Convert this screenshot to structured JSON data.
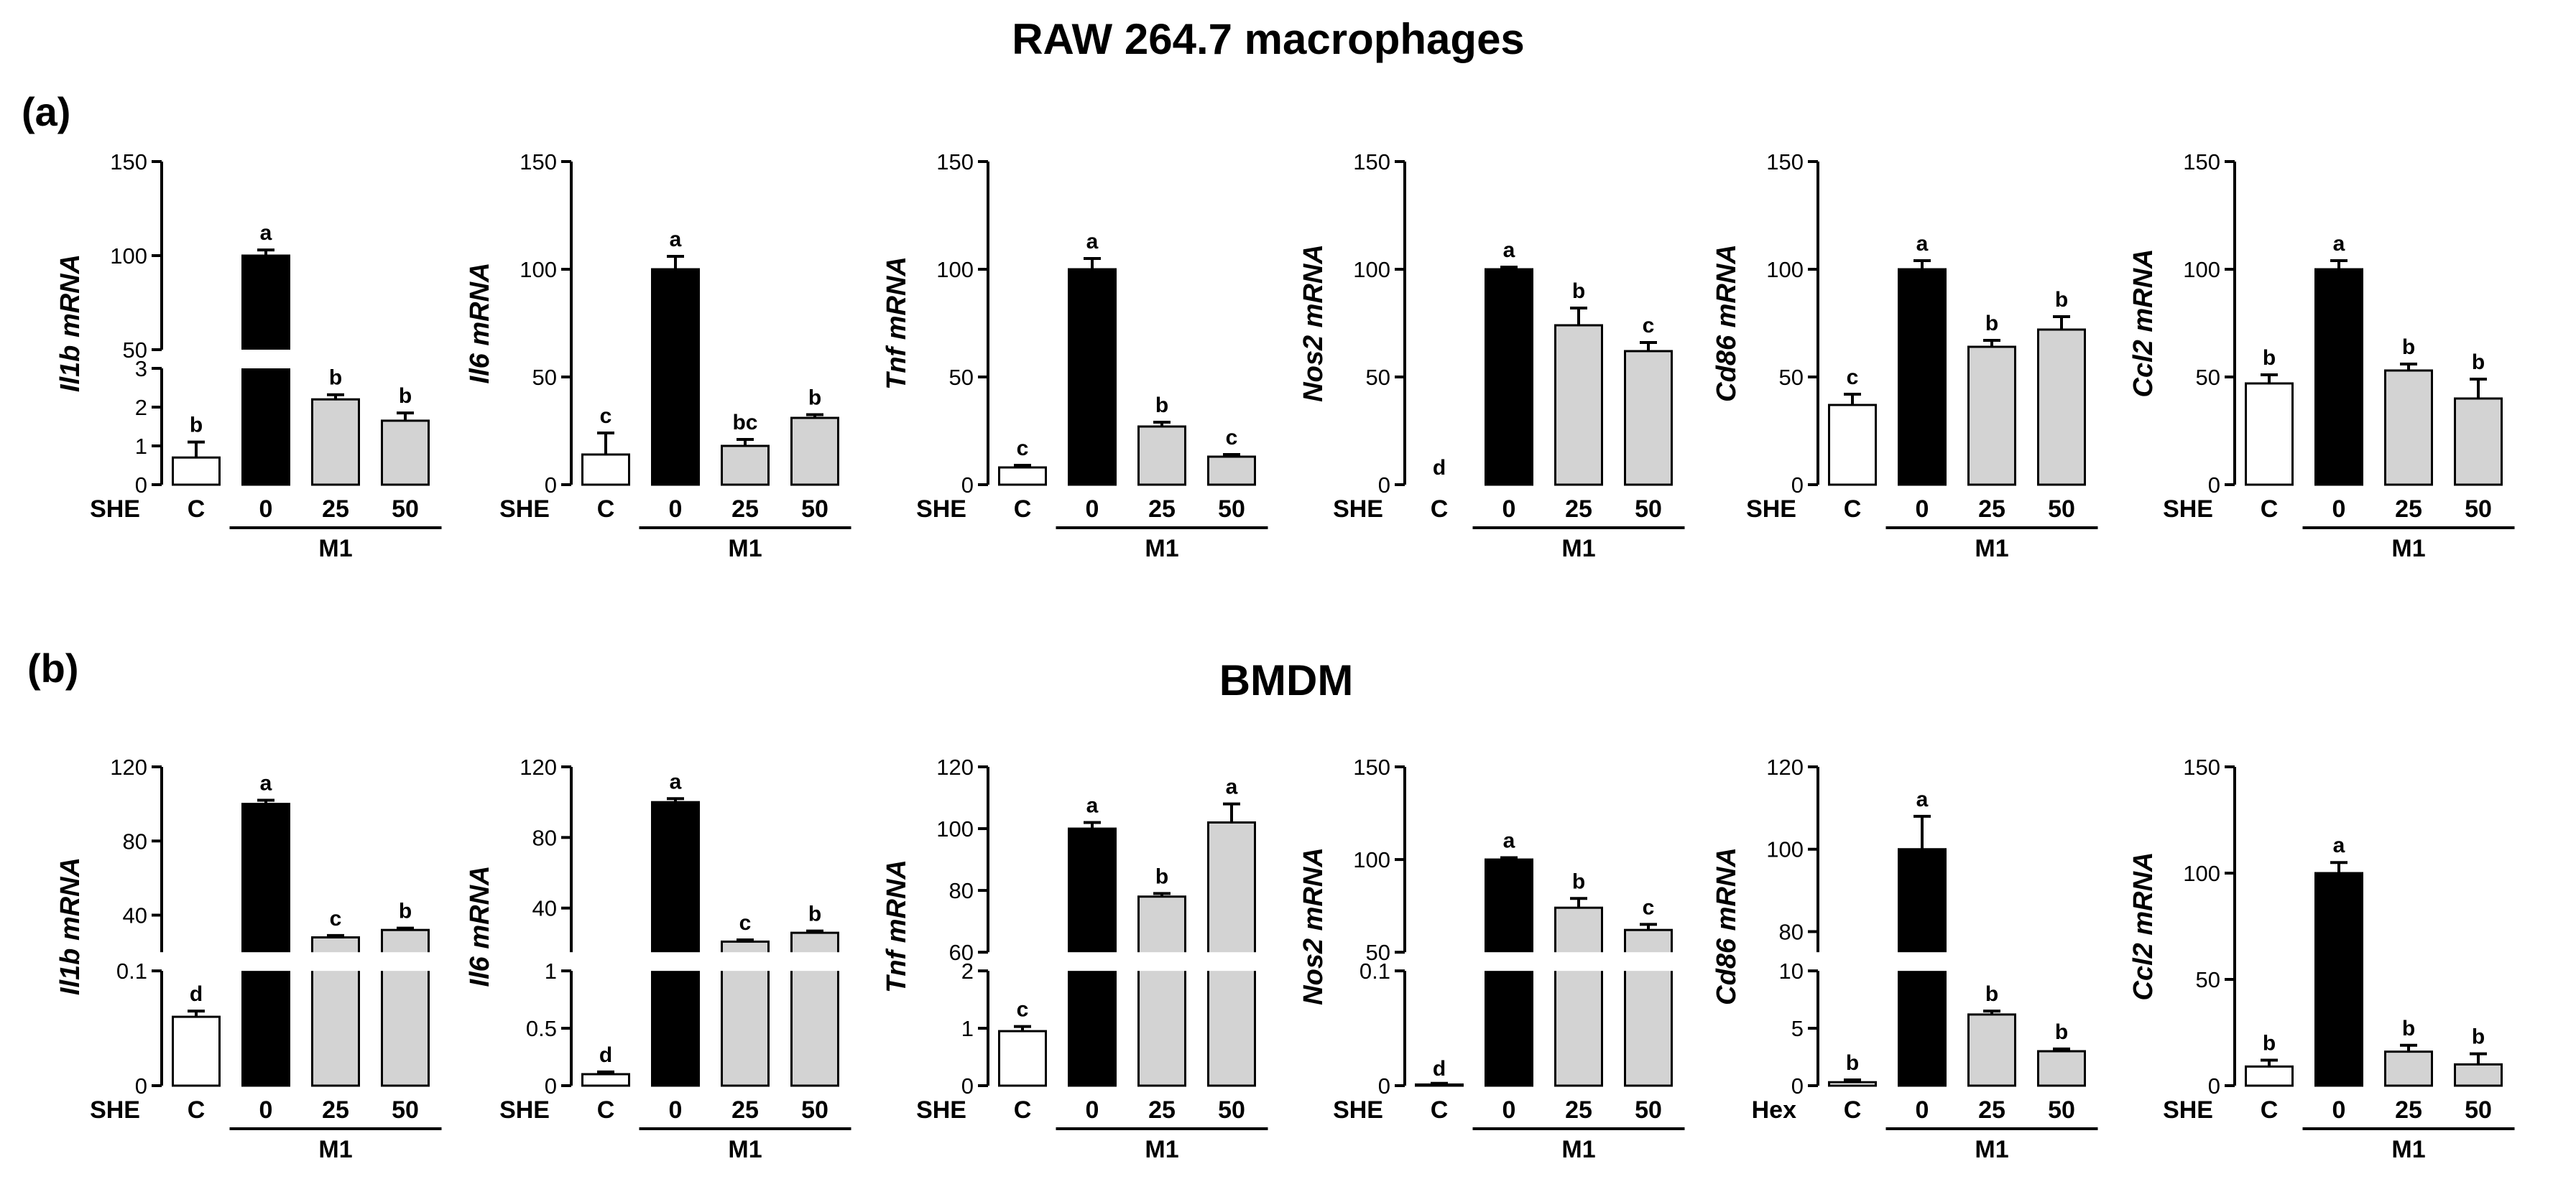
{
  "titles": {
    "raw": "RAW 264.7 macrophages",
    "bmdm": "BMDM",
    "panel_a": "(a)",
    "panel_b": "(b)"
  },
  "colors": {
    "control": "#ffffff",
    "m1": "#000000",
    "she": "#d3d3d3",
    "axis": "#000000"
  },
  "chart_data": [
    {
      "panel": "a",
      "type": "bar",
      "gene": "Il1b",
      "ylabel": "Il1b mRNA",
      "treatment_label": "SHE",
      "group_label": "M1",
      "categories": [
        "C",
        "0",
        "25",
        "50"
      ],
      "values": [
        0.7,
        100,
        2.2,
        1.65
      ],
      "errors": [
        0.4,
        3,
        0.12,
        0.2
      ],
      "letters": [
        "b",
        "a",
        "b",
        "b"
      ],
      "broken_axis": {
        "lower": [
          0,
          3
        ],
        "upper": [
          50,
          150
        ],
        "lower_ticks": [
          0,
          1,
          2,
          3
        ],
        "upper_ticks": [
          50,
          100,
          150
        ]
      }
    },
    {
      "panel": "a",
      "type": "bar",
      "gene": "Il6",
      "ylabel": "Il6 mRNA",
      "treatment_label": "SHE",
      "group_label": "M1",
      "categories": [
        "C",
        "0",
        "25",
        "50"
      ],
      "values": [
        14,
        100,
        18,
        31
      ],
      "errors": [
        10,
        6,
        3,
        1.5
      ],
      "letters": [
        "c",
        "a",
        "bc",
        "b"
      ],
      "ylim": [
        0,
        150
      ],
      "yticks": [
        0,
        50,
        100,
        150
      ]
    },
    {
      "panel": "a",
      "type": "bar",
      "gene": "Tnf",
      "ylabel": "Tnf mRNA",
      "treatment_label": "SHE",
      "group_label": "M1",
      "categories": [
        "C",
        "0",
        "25",
        "50"
      ],
      "values": [
        8,
        100,
        27,
        13
      ],
      "errors": [
        1,
        5,
        2,
        1
      ],
      "letters": [
        "c",
        "a",
        "b",
        "c"
      ],
      "ylim": [
        0,
        150
      ],
      "yticks": [
        0,
        50,
        100,
        150
      ]
    },
    {
      "panel": "a",
      "type": "bar",
      "gene": "Nos2",
      "ylabel": "Nos2 mRNA",
      "treatment_label": "SHE",
      "group_label": "M1",
      "categories": [
        "C",
        "0",
        "25",
        "50"
      ],
      "values": [
        0,
        100,
        74,
        62
      ],
      "errors": [
        0,
        1,
        8,
        4
      ],
      "letters": [
        "d",
        "a",
        "b",
        "c"
      ],
      "ylim": [
        0,
        150
      ],
      "yticks": [
        0,
        50,
        100,
        150
      ]
    },
    {
      "panel": "a",
      "type": "bar",
      "gene": "Cd86",
      "ylabel": "Cd86 mRNA",
      "treatment_label": "SHE",
      "group_label": "M1",
      "categories": [
        "C",
        "0",
        "25",
        "50"
      ],
      "values": [
        37,
        100,
        64,
        72
      ],
      "errors": [
        5,
        4,
        3,
        6
      ],
      "letters": [
        "c",
        "a",
        "b",
        "b"
      ],
      "ylim": [
        0,
        150
      ],
      "yticks": [
        0,
        50,
        100,
        150
      ]
    },
    {
      "panel": "a",
      "type": "bar",
      "gene": "Ccl2",
      "ylabel": "Ccl2 mRNA",
      "treatment_label": "SHE",
      "group_label": "M1",
      "categories": [
        "C",
        "0",
        "25",
        "50"
      ],
      "values": [
        47,
        100,
        53,
        40
      ],
      "errors": [
        4,
        4,
        3,
        9
      ],
      "letters": [
        "b",
        "a",
        "b",
        "b"
      ],
      "ylim": [
        0,
        150
      ],
      "yticks": [
        0,
        50,
        100,
        150
      ]
    },
    {
      "panel": "b",
      "type": "bar",
      "gene": "Il1b",
      "ylabel": "Il1b mRNA",
      "treatment_label": "SHE",
      "group_label": "M1",
      "categories": [
        "C",
        "0",
        "25",
        "50"
      ],
      "values": [
        0.06,
        100,
        28,
        32
      ],
      "errors": [
        0.005,
        2,
        1,
        1
      ],
      "letters": [
        "d",
        "a",
        "c",
        "b"
      ],
      "broken_axis": {
        "lower": [
          0,
          0.1
        ],
        "upper": [
          20,
          120
        ],
        "lower_ticks": [
          0.0,
          0.1
        ],
        "upper_ticks": [
          40,
          80,
          120
        ]
      }
    },
    {
      "panel": "b",
      "type": "bar",
      "gene": "Il6",
      "ylabel": "Il6 mRNA",
      "treatment_label": "SHE",
      "group_label": "M1",
      "categories": [
        "C",
        "0",
        "25",
        "50"
      ],
      "values": [
        0.1,
        100,
        21,
        26
      ],
      "errors": [
        0.02,
        2,
        1,
        1
      ],
      "letters": [
        "d",
        "a",
        "c",
        "b"
      ],
      "broken_axis": {
        "lower": [
          0,
          1.0
        ],
        "upper": [
          15,
          120
        ],
        "lower_ticks": [
          0.0,
          0.5,
          1.0
        ],
        "upper_ticks": [
          40,
          80,
          120
        ]
      }
    },
    {
      "panel": "b",
      "type": "bar",
      "gene": "Tnf",
      "ylabel": "Tnf mRNA",
      "treatment_label": "SHE",
      "group_label": "M1",
      "categories": [
        "C",
        "0",
        "25",
        "50"
      ],
      "values": [
        0.95,
        100,
        78,
        102
      ],
      "errors": [
        0.08,
        2,
        1,
        6
      ],
      "letters": [
        "c",
        "a",
        "b",
        "a"
      ],
      "broken_axis": {
        "lower": [
          0,
          2
        ],
        "upper": [
          60,
          120
        ],
        "lower_ticks": [
          0,
          1,
          2
        ],
        "upper_ticks": [
          60,
          80,
          100,
          120
        ]
      }
    },
    {
      "panel": "b",
      "type": "bar",
      "gene": "Nos2",
      "ylabel": "Nos2 mRNA",
      "treatment_label": "SHE",
      "group_label": "M1",
      "categories": [
        "C",
        "0",
        "25",
        "50"
      ],
      "values": [
        0.001,
        100,
        74,
        62
      ],
      "errors": [
        0.001,
        1,
        5,
        3
      ],
      "letters": [
        "d",
        "a",
        "b",
        "c"
      ],
      "broken_axis": {
        "lower": [
          0,
          0.1
        ],
        "upper": [
          50,
          150
        ],
        "lower_ticks": [
          0.0,
          0.1
        ],
        "upper_ticks": [
          50,
          100,
          150
        ]
      }
    },
    {
      "panel": "b",
      "type": "bar",
      "gene": "Cd86",
      "ylabel": "Cd86 mRNA",
      "treatment_label": "Hex",
      "group_label": "M1",
      "categories": [
        "C",
        "0",
        "25",
        "50"
      ],
      "values": [
        0.3,
        100,
        6.2,
        3
      ],
      "errors": [
        0.2,
        8,
        0.3,
        0.2
      ],
      "letters": [
        "b",
        "a",
        "b",
        "b"
      ],
      "broken_axis": {
        "lower": [
          0,
          10
        ],
        "upper": [
          75,
          120
        ],
        "lower_ticks": [
          0,
          5,
          10
        ],
        "upper_ticks": [
          80,
          100,
          120
        ]
      }
    },
    {
      "panel": "b",
      "type": "bar",
      "gene": "Ccl2",
      "ylabel": "Ccl2 mRNA",
      "treatment_label": "SHE",
      "group_label": "M1",
      "categories": [
        "C",
        "0",
        "25",
        "50"
      ],
      "values": [
        9,
        100,
        16,
        10
      ],
      "errors": [
        3,
        5,
        3,
        5
      ],
      "letters": [
        "b",
        "a",
        "b",
        "b"
      ],
      "ylim": [
        0,
        150
      ],
      "yticks": [
        0,
        50,
        100,
        150
      ]
    }
  ]
}
